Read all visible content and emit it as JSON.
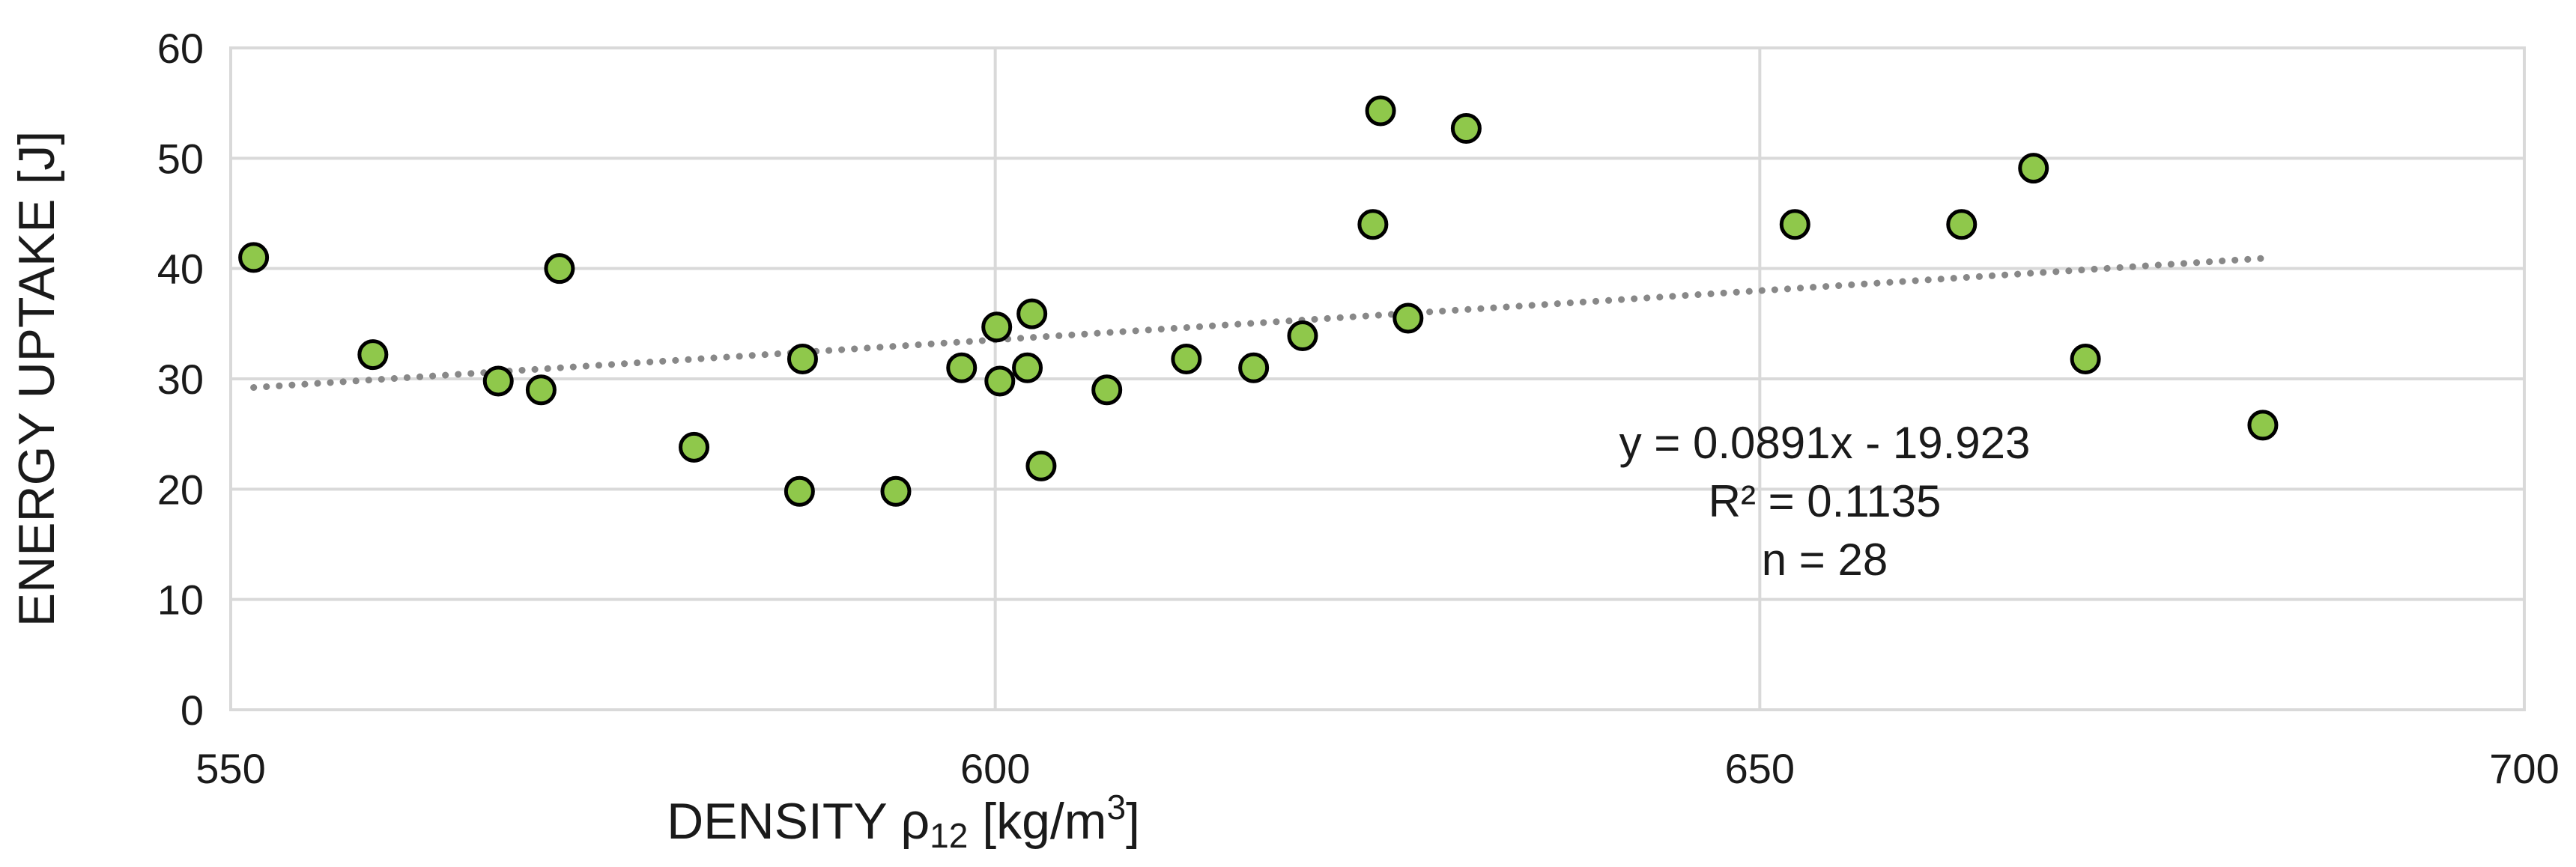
{
  "chart_data": {
    "type": "scatter",
    "title": "",
    "xlabel": {
      "prefix": "DENSITY  ρ",
      "subscript": "12",
      "middle": " [kg/m",
      "superscript": "3",
      "suffix": "]"
    },
    "ylabel": "ENERGY UPTAKE [J]",
    "xlim": [
      550,
      700
    ],
    "ylim": [
      0,
      60
    ],
    "xticks": [
      "550",
      "600",
      "650",
      "700"
    ],
    "yticks": [
      "0",
      "10",
      "20",
      "30",
      "40",
      "50",
      "60"
    ],
    "grid": true,
    "marker": {
      "fill": "#8fc84b",
      "edge": "#000000"
    },
    "trendline": {
      "slope": 0.0891,
      "intercept": -19.923,
      "x_range": [
        551.5,
        683
      ],
      "color": "#888888",
      "style": "dotted"
    },
    "points": [
      {
        "x": 551.5,
        "y": 41
      },
      {
        "x": 559.3,
        "y": 32.2
      },
      {
        "x": 567.5,
        "y": 29.8
      },
      {
        "x": 570.3,
        "y": 29
      },
      {
        "x": 571.5,
        "y": 40
      },
      {
        "x": 580.3,
        "y": 23.8
      },
      {
        "x": 587.2,
        "y": 19.8
      },
      {
        "x": 587.4,
        "y": 31.8
      },
      {
        "x": 593.5,
        "y": 19.8
      },
      {
        "x": 597.8,
        "y": 31
      },
      {
        "x": 600.1,
        "y": 34.7
      },
      {
        "x": 600.3,
        "y": 29.8
      },
      {
        "x": 602.1,
        "y": 31
      },
      {
        "x": 602.4,
        "y": 35.9
      },
      {
        "x": 603,
        "y": 22.1
      },
      {
        "x": 607.3,
        "y": 29
      },
      {
        "x": 612.5,
        "y": 31.8
      },
      {
        "x": 616.9,
        "y": 31
      },
      {
        "x": 620.1,
        "y": 33.9
      },
      {
        "x": 624.7,
        "y": 44
      },
      {
        "x": 625.2,
        "y": 54.3
      },
      {
        "x": 627,
        "y": 35.5
      },
      {
        "x": 630.8,
        "y": 52.7
      },
      {
        "x": 652.3,
        "y": 44
      },
      {
        "x": 663.2,
        "y": 44
      },
      {
        "x": 667.9,
        "y": 49.1
      },
      {
        "x": 671.3,
        "y": 31.8
      },
      {
        "x": 682.9,
        "y": 25.8
      }
    ],
    "annotations": [
      "y = 0.0891x - 19.923",
      "R² = 0.1135",
      "n = 28"
    ]
  }
}
